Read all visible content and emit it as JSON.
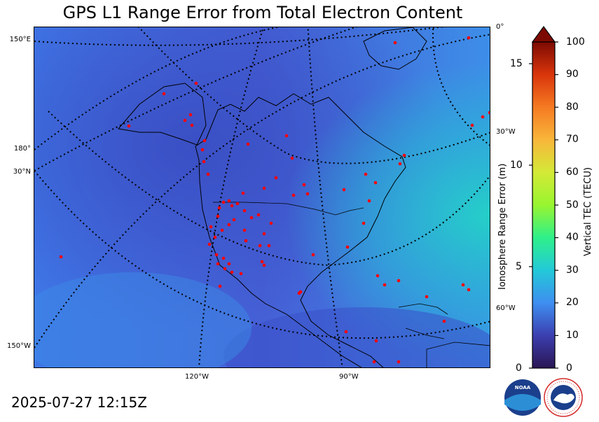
{
  "title": "GPS L1 Range Error from Total Electron Content",
  "timestamp": "2025-07-27 12:15Z",
  "map": {
    "graticule_labels": {
      "left_150E": "150°E",
      "left_180": "180°",
      "left_30N": "30°N",
      "left_150W": "150°W",
      "right_0": "0°",
      "right_30W": "30°W",
      "right_60W": "60°W",
      "bottom_120W": "120°W",
      "bottom_90W": "90°W"
    },
    "background_color": "#3b7de0",
    "station_color": "#ff0000",
    "coastline_color": "#000000"
  },
  "range_axis": {
    "label": "Ionosphere Range Error (m)",
    "ticks": [
      "0",
      "5",
      "10",
      "15"
    ]
  },
  "tec_axis": {
    "label": "Vertical TEC (TECU)",
    "ticks": [
      "0",
      "10",
      "20",
      "30",
      "40",
      "50",
      "60",
      "70",
      "80",
      "90",
      "100"
    ],
    "extend": "max"
  },
  "logos": {
    "noaa": "NOAA",
    "nws": "NATIONAL WEATHER SERVICE"
  }
}
